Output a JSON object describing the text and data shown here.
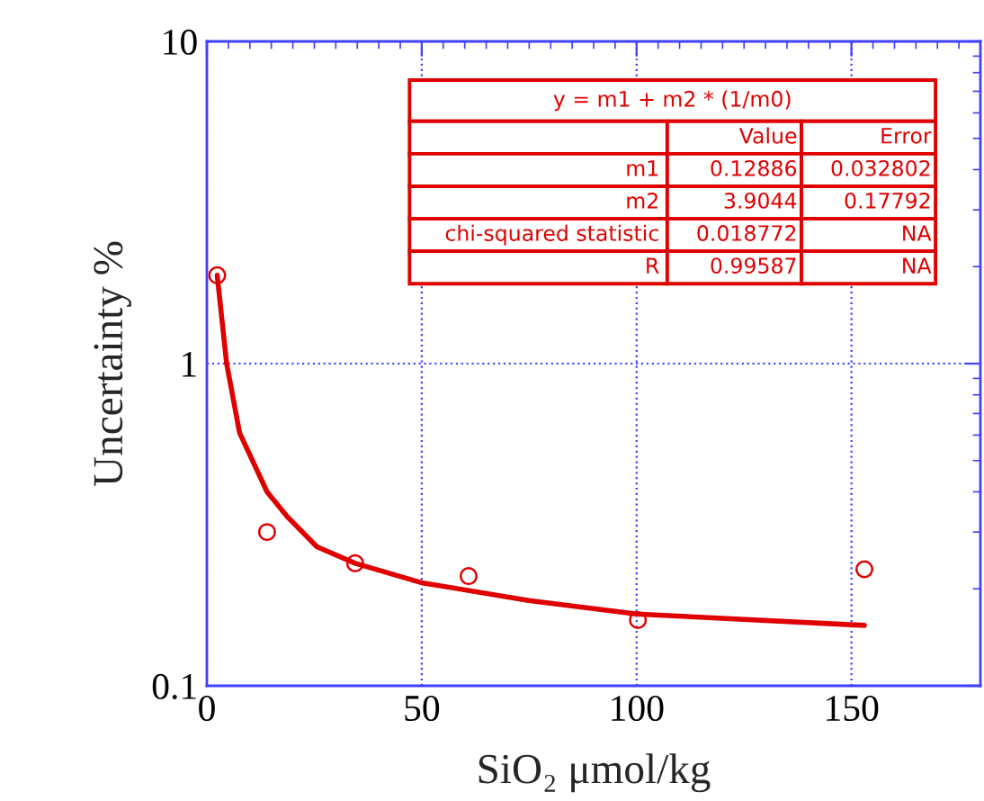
{
  "chart_data": {
    "type": "scatter",
    "xlabel": "SiO₂ μmol/kg",
    "ylabel": "Uncertainty %",
    "series": [
      {
        "color": "#e00000",
        "marker": "circle",
        "x": [
          2.4,
          14.0,
          34.5,
          60.9,
          100.3,
          153.0
        ],
        "values": [
          1.88,
          0.3,
          0.24,
          0.219,
          0.16,
          0.23
        ]
      },
      {
        "type": "line",
        "color": "#e00000",
        "marker": "none",
        "line_style": "solid",
        "x": [
          2.4,
          4.6,
          7.6,
          14.0,
          18.7,
          25.6,
          34.5,
          49.9,
          74.9,
          100.0,
          153.0
        ],
        "values": [
          1.88,
          1.0,
          0.61,
          0.4,
          0.335,
          0.27,
          0.24,
          0.209,
          0.184,
          0.167,
          0.154
        ]
      }
    ],
    "log": "y",
    "xlim": [
      0,
      180
    ],
    "xticks": [
      0,
      50,
      100,
      150
    ],
    "ylim": [
      0.1,
      10
    ],
    "yticks": [
      0.1,
      1,
      10
    ],
    "grid": true,
    "annotations": [
      "y = m1 + m2 * (1/m0)",
      "Value",
      "Error",
      "m1",
      "0.12886",
      "0.032802",
      "m2",
      "3.9044",
      "0.17792",
      "chi-squared statistic",
      "0.018772",
      "NA",
      "R",
      "0.99587",
      "NA"
    ]
  }
}
